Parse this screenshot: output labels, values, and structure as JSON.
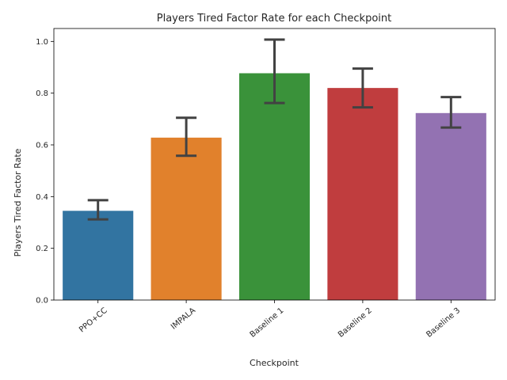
{
  "chart_data": {
    "type": "bar",
    "title": "Players Tired Factor Rate for each Checkpoint",
    "xlabel": "Checkpoint",
    "ylabel": "Players Tired Factor Rate",
    "ylim": [
      0,
      1.05
    ],
    "yticks": [
      "0.0",
      "0.2",
      "0.4",
      "0.6",
      "0.8",
      "1.0"
    ],
    "categories": [
      "PPO+CC",
      "IMPALA",
      "Baseline 1",
      "Baseline 2",
      "Baseline 3"
    ],
    "values": [
      0.345,
      0.628,
      0.877,
      0.82,
      0.723
    ],
    "error_low": [
      0.312,
      0.558,
      0.762,
      0.745,
      0.667
    ],
    "error_high": [
      0.386,
      0.705,
      1.007,
      0.895,
      0.785
    ],
    "colors": [
      "#3274a1",
      "#e1812c",
      "#3a923a",
      "#c03d3e",
      "#9372b2"
    ],
    "error_color": "#424242",
    "grid": false,
    "legend": "none"
  }
}
